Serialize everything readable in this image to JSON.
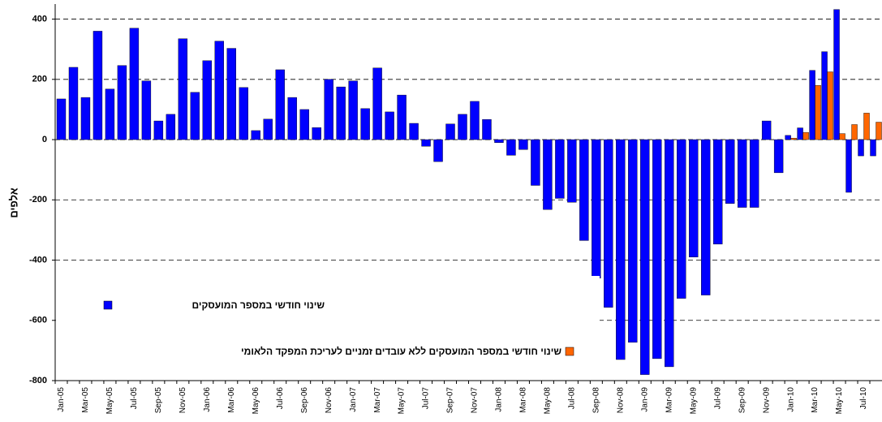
{
  "chart_data": {
    "type": "bar",
    "y_label": "אלפים",
    "categories": [
      "Jan-05",
      null,
      "Mar-05",
      null,
      "May-05",
      null,
      "Jul-05",
      null,
      "Sep-05",
      null,
      "Nov-05",
      null,
      "Jan-06",
      null,
      "Mar-06",
      null,
      "May-06",
      null,
      "Jul-06",
      null,
      "Sep-06",
      null,
      "Nov-06",
      null,
      "Jan-07",
      null,
      "Mar-07",
      null,
      "May-07",
      null,
      "Jul-07",
      null,
      "Sep-07",
      null,
      "Nov-07",
      null,
      "Jan-08",
      null,
      "Mar-08",
      null,
      "May-08",
      null,
      "Jul-08",
      null,
      "Sep-08",
      null,
      "Nov-08",
      null,
      "Jan-09",
      null,
      "Mar-09",
      null,
      "May-09",
      null,
      "Jul-09",
      null,
      "Sep-09",
      null,
      "Nov-09",
      null,
      "Jan-10",
      null,
      "Mar-10",
      null,
      "May-10",
      null,
      "Jul-10",
      null
    ],
    "series": [
      {
        "name": "שינוי חודשי במספר המועסקים",
        "color": "#0000ff",
        "values": [
          135,
          240,
          140,
          360,
          168,
          246,
          370,
          195,
          62,
          84,
          335,
          157,
          262,
          327,
          303,
          173,
          30,
          68,
          232,
          140,
          100,
          40,
          200,
          175,
          195,
          103,
          238,
          92,
          148,
          54,
          -22,
          -73,
          52,
          84,
          127,
          67,
          -10,
          -52,
          -33,
          -152,
          -232,
          -195,
          -208,
          -335,
          -460,
          -557,
          -730,
          -673,
          -780,
          -727,
          -754,
          -527,
          -390,
          -516,
          -347,
          -212,
          -225,
          -225,
          62,
          -110,
          14,
          39,
          230,
          292,
          432,
          -175,
          -54,
          -54
        ]
      },
      {
        "name": "שינוי חודשי במספר המועסקים ללא עובדים זמניים לעריכת המפקד הלאומי",
        "color": "#ff6600",
        "values": [
          null,
          null,
          null,
          null,
          null,
          null,
          null,
          null,
          null,
          null,
          null,
          null,
          null,
          null,
          null,
          null,
          null,
          null,
          null,
          null,
          null,
          null,
          null,
          null,
          null,
          null,
          null,
          null,
          null,
          null,
          null,
          null,
          null,
          null,
          null,
          null,
          null,
          null,
          null,
          null,
          null,
          null,
          null,
          null,
          null,
          null,
          null,
          null,
          null,
          null,
          null,
          null,
          null,
          null,
          null,
          null,
          null,
          null,
          null,
          null,
          5,
          24,
          180,
          225,
          20,
          50,
          88,
          58
        ]
      }
    ],
    "ylim": [
      -800,
      450
    ],
    "yticks": [
      -800,
      -600,
      -400,
      -200,
      0,
      200,
      400
    ],
    "grid": true,
    "legend": "lower-left"
  }
}
